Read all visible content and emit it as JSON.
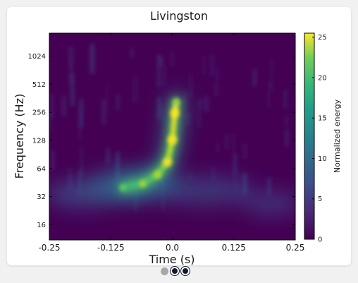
{
  "chart_data": {
    "type": "heatmap",
    "title": "Livingston",
    "xlabel": "Time (s)",
    "ylabel": "Frequency (Hz)",
    "xlim": [
      -0.25,
      0.25
    ],
    "x_ticks": [
      -0.25,
      -0.125,
      0.0,
      0.125,
      0.25
    ],
    "x_tick_labels": [
      "-0.25",
      "-0.125",
      "0.0",
      "0.125",
      "0.25"
    ],
    "y_scale": "log2",
    "ylim": [
      11,
      1800
    ],
    "y_ticks": [
      16,
      32,
      64,
      128,
      256,
      512,
      1024
    ],
    "y_tick_labels": [
      "16",
      "32",
      "64",
      "128",
      "256",
      "512",
      "1024"
    ],
    "colorbar": {
      "label": "Normalized energy",
      "range": [
        0,
        25.5
      ],
      "ticks": [
        0,
        5,
        10,
        15,
        20,
        25
      ],
      "tick_labels": [
        "0",
        "5",
        "10",
        "15",
        "20",
        "25"
      ],
      "colormap": "viridis"
    },
    "chirp_track": [
      {
        "t": -0.1,
        "f": 40,
        "energy": 9
      },
      {
        "t": -0.06,
        "f": 44,
        "energy": 14
      },
      {
        "t": -0.03,
        "f": 55,
        "energy": 18
      },
      {
        "t": -0.01,
        "f": 75,
        "energy": 22
      },
      {
        "t": 0.0,
        "f": 130,
        "energy": 25
      },
      {
        "t": 0.005,
        "f": 250,
        "energy": 22
      },
      {
        "t": 0.008,
        "f": 330,
        "energy": 12
      }
    ],
    "grid": false
  },
  "carousel": {
    "pages": 3,
    "active_index": 1
  }
}
